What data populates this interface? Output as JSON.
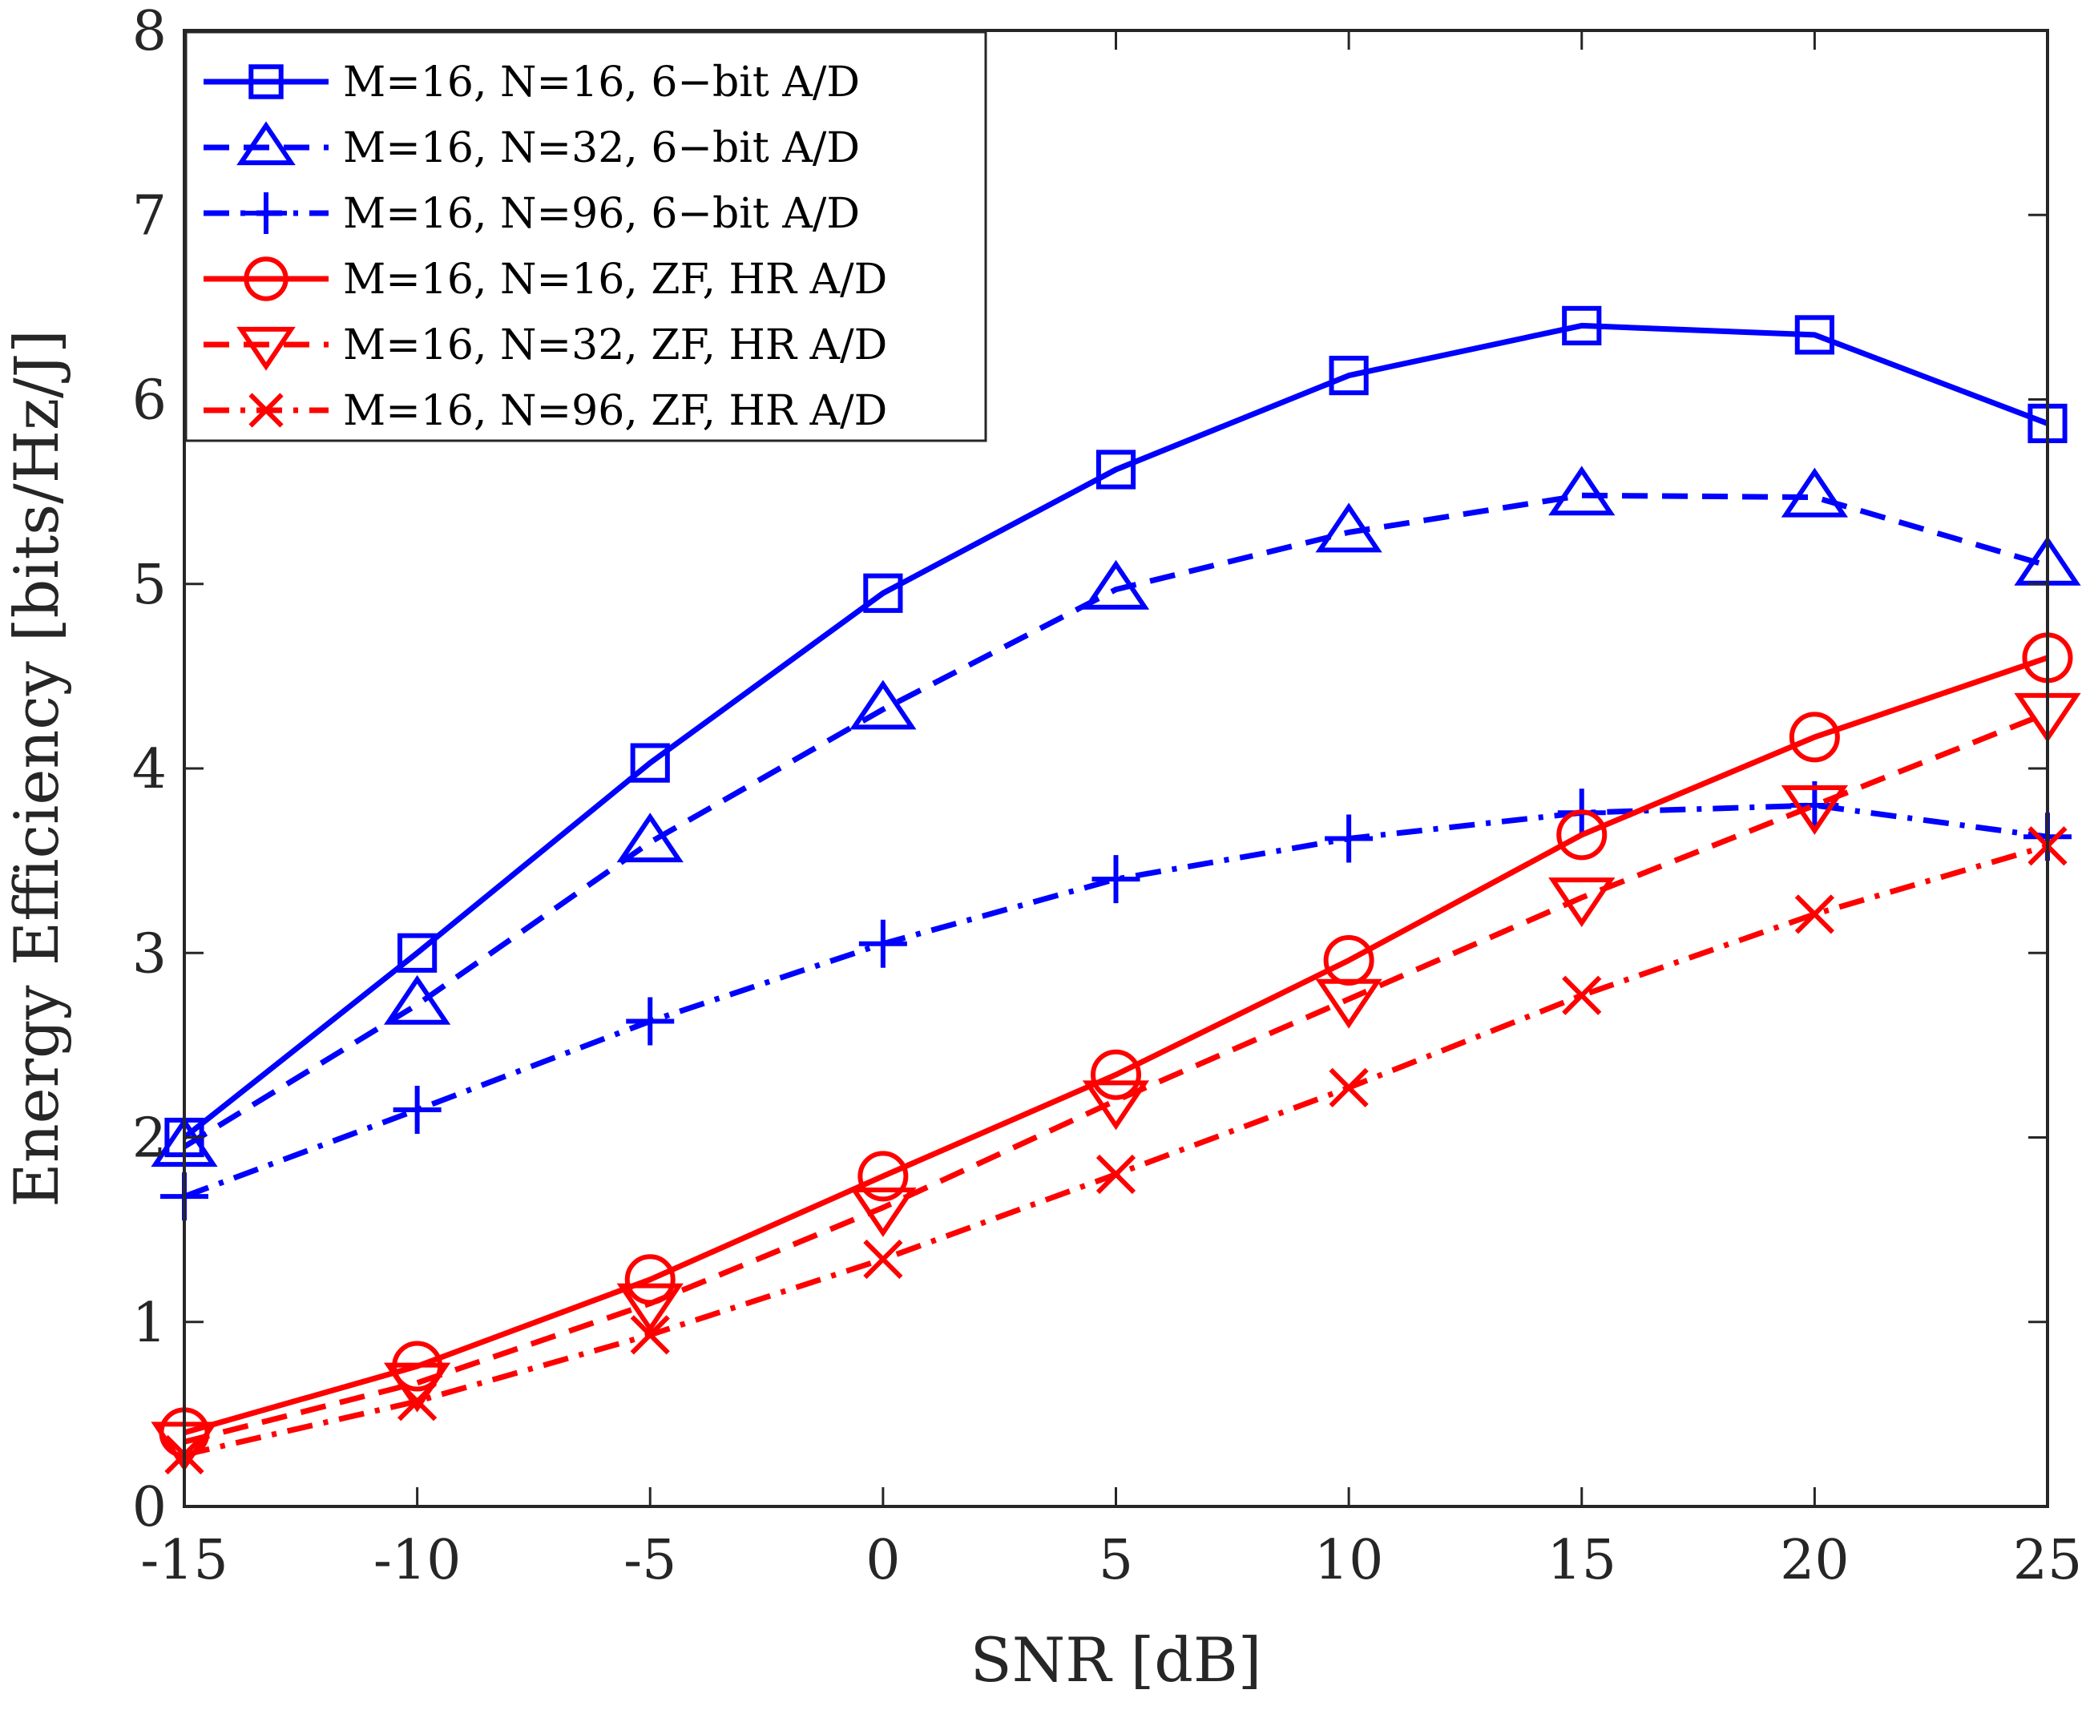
{
  "chart_data": {
    "type": "line",
    "title": "",
    "xlabel": "SNR [dB]",
    "ylabel": "Energy Efficiency [bits/Hz/J]",
    "xlim": [
      -15,
      25
    ],
    "ylim": [
      0,
      8
    ],
    "x": [
      -15,
      -10,
      -5,
      0,
      5,
      10,
      15,
      20,
      25
    ],
    "xticks": [
      -15,
      -10,
      -5,
      0,
      5,
      10,
      15,
      20,
      25
    ],
    "xtick_labels": [
      "-15",
      "-10",
      "-5",
      "0",
      "5",
      "10",
      "15",
      "20",
      "25"
    ],
    "yticks": [
      0,
      1,
      2,
      3,
      4,
      5,
      6,
      7,
      8
    ],
    "ytick_labels": [
      "0",
      "1",
      "2",
      "3",
      "4",
      "5",
      "6",
      "7",
      "8"
    ],
    "grid": false,
    "legend_position": "top-left",
    "series": [
      {
        "name": "M=16, N=16, 6−bit A/D",
        "color": "#0000ff",
        "dash": "solid",
        "marker": "square",
        "values": [
          2.0,
          3.0,
          4.03,
          4.95,
          5.62,
          6.13,
          6.4,
          6.35,
          5.87
        ]
      },
      {
        "name": "M=16, N=32, 6−bit A/D",
        "color": "#0000ff",
        "dash": "dashed",
        "marker": "triangle-up",
        "values": [
          1.95,
          2.72,
          3.6,
          4.32,
          4.97,
          5.28,
          5.48,
          5.47,
          5.1
        ]
      },
      {
        "name": "M=16, N=96, 6−bit A/D",
        "color": "#0000ff",
        "dash": "dashdot",
        "marker": "plus",
        "values": [
          1.68,
          2.15,
          2.63,
          3.05,
          3.4,
          3.62,
          3.76,
          3.8,
          3.63
        ]
      },
      {
        "name": "M=16, N=16, ZF, HR A/D",
        "color": "#ff0000",
        "dash": "solid",
        "marker": "circle",
        "values": [
          0.4,
          0.76,
          1.23,
          1.79,
          2.34,
          2.96,
          3.64,
          4.17,
          4.6
        ]
      },
      {
        "name": "M=16, N=32, ZF, HR A/D",
        "color": "#ff0000",
        "dash": "dashed",
        "marker": "triangle-down",
        "values": [
          0.35,
          0.67,
          1.1,
          1.62,
          2.2,
          2.75,
          3.3,
          3.8,
          4.3
        ]
      },
      {
        "name": "M=16, N=96, ZF, HR A/D",
        "color": "#ff0000",
        "dash": "dashdot",
        "marker": "x",
        "values": [
          0.28,
          0.57,
          0.93,
          1.34,
          1.8,
          2.27,
          2.77,
          3.21,
          3.58
        ]
      }
    ]
  }
}
